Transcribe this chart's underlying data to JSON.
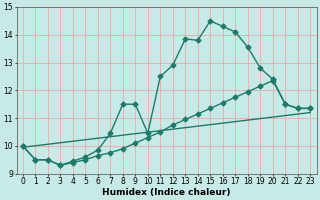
{
  "xlabel": "Humidex (Indice chaleur)",
  "bg_color": "#c8eae6",
  "grid_color": "#e8aaaa",
  "line_color": "#1e7a6a",
  "xlim": [
    -0.5,
    23.5
  ],
  "ylim": [
    9.0,
    15.0
  ],
  "yticks": [
    9,
    10,
    11,
    12,
    13,
    14,
    15
  ],
  "xticks": [
    0,
    1,
    2,
    3,
    4,
    5,
    6,
    7,
    8,
    9,
    10,
    11,
    12,
    13,
    14,
    15,
    16,
    17,
    18,
    19,
    20,
    21,
    22,
    23
  ],
  "series1_x": [
    0,
    1,
    2,
    3,
    4,
    5,
    6,
    7,
    8,
    9,
    10,
    11,
    12,
    13,
    14,
    15,
    16,
    17,
    18,
    19,
    20,
    21,
    22,
    23
  ],
  "series1_y": [
    10.0,
    9.5,
    9.5,
    9.3,
    9.45,
    9.6,
    9.85,
    10.45,
    11.5,
    11.5,
    10.45,
    12.5,
    12.9,
    13.85,
    13.8,
    14.5,
    14.3,
    14.1,
    13.55,
    12.8,
    12.4,
    11.5,
    11.35,
    11.35
  ],
  "series2_x": [
    0,
    1,
    2,
    3,
    4,
    5,
    6,
    7,
    8,
    9,
    10,
    11,
    12,
    13,
    14,
    15,
    16,
    17,
    18,
    19,
    20,
    21,
    22,
    23
  ],
  "series2_y": [
    10.0,
    9.5,
    9.5,
    9.3,
    9.4,
    9.5,
    9.65,
    9.75,
    9.9,
    10.1,
    10.3,
    10.5,
    10.75,
    10.95,
    11.15,
    11.35,
    11.55,
    11.75,
    11.95,
    12.15,
    12.35,
    11.5,
    11.35,
    11.35
  ],
  "series3_x": [
    0,
    23
  ],
  "series3_y": [
    9.95,
    11.2
  ],
  "marker": "D",
  "marker_size": 2.5,
  "line_width": 1.0,
  "tick_fontsize": 5.5,
  "label_fontsize": 6.5
}
